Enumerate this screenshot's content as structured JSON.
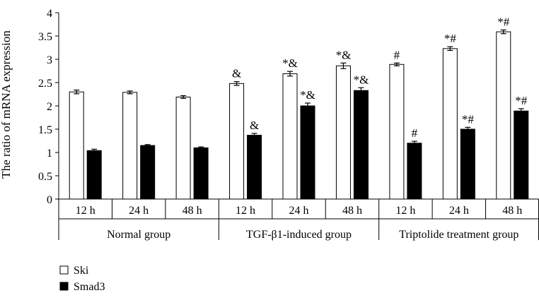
{
  "chart_data": {
    "type": "bar",
    "ylabel": "The ratio of mRNA expression",
    "ylim": [
      0,
      4
    ],
    "yticks": [
      "0",
      "0.5",
      "1",
      "1.5",
      "2",
      "2.5",
      "3",
      "3.5",
      "4"
    ],
    "categories": [
      "12 h",
      "24 h",
      "48 h",
      "12 h",
      "24 h",
      "48 h",
      "12 h",
      "24 h",
      "48 h"
    ],
    "groups": [
      {
        "label": "Normal group",
        "start": 0,
        "end": 3
      },
      {
        "label": "TGF-β1-induced group",
        "start": 3,
        "end": 6
      },
      {
        "label": "Triptolide treatment group",
        "start": 6,
        "end": 9
      }
    ],
    "series": [
      {
        "name": "Ski",
        "color": "#ffffff",
        "values": [
          2.3,
          2.29,
          2.19,
          2.48,
          2.69,
          2.86,
          2.89,
          3.23,
          3.59
        ],
        "errors": [
          0.04,
          0.03,
          0.03,
          0.04,
          0.05,
          0.06,
          0.03,
          0.04,
          0.04
        ],
        "annotations": [
          "",
          "",
          "",
          "&",
          "*&",
          "*&",
          "#",
          "*#",
          "*#"
        ]
      },
      {
        "name": "Smad3",
        "color": "#000000",
        "values": [
          1.04,
          1.15,
          1.1,
          1.37,
          2.0,
          2.33,
          1.2,
          1.5,
          1.89
        ],
        "errors": [
          0.03,
          0.02,
          0.02,
          0.04,
          0.06,
          0.06,
          0.04,
          0.04,
          0.05
        ],
        "annotations": [
          "",
          "",
          "",
          "&",
          "*&",
          "*&",
          "#",
          "*#",
          "*#"
        ]
      }
    ],
    "legend": {
      "position": "bottom-left"
    },
    "grid": false
  }
}
